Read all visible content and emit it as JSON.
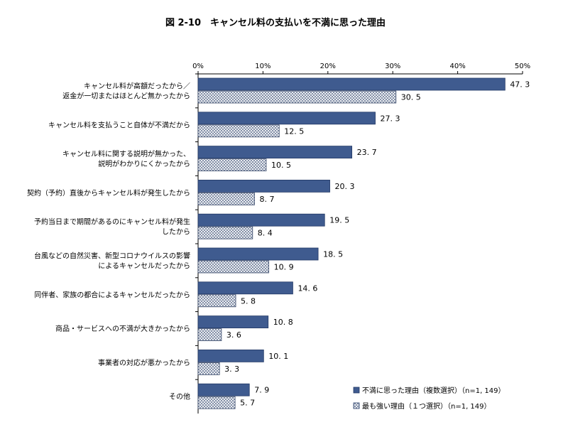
{
  "chart_data": {
    "type": "bar",
    "orientation": "horizontal",
    "title": "図 2-10　キャンセル料の支払いを不満に思った理由",
    "xlim": [
      0,
      50
    ],
    "x_ticks": [
      "0%",
      "10%",
      "20%",
      "30%",
      "40%",
      "50%"
    ],
    "grid": false,
    "legend_position": "bottom-right",
    "categories": [
      [
        "キャンセル料が高額だったから／",
        "返金が一切またはほとんど無かったから"
      ],
      [
        "キャンセル料を支払うこと自体が不満だから"
      ],
      [
        "キャンセル料に関する説明が無かった、",
        "説明がわかりにくかったから"
      ],
      [
        "契約（予約）直後からキャンセル料が発生したから"
      ],
      [
        "予約当日まで期間があるのにキャンセル料が発生",
        "したから"
      ],
      [
        "台風などの自然災害、新型コロナウイルスの影響",
        "によるキャンセルだったから"
      ],
      [
        "同伴者、家族の都合によるキャンセルだったから"
      ],
      [
        "商品・サービスへの不満が大きかったから"
      ],
      [
        "事業者の対応が悪かったから"
      ],
      [
        "その他"
      ]
    ],
    "series": [
      {
        "name": "不満に思った理由（複数選択）（n=1, 149）",
        "color": "#3f5b8f",
        "values": [
          47.3,
          27.3,
          23.7,
          20.3,
          19.5,
          18.5,
          14.6,
          10.8,
          10.1,
          7.9
        ],
        "labels": [
          "47. 3",
          "27. 3",
          "23. 7",
          "20. 3",
          "19. 5",
          "18. 5",
          "14. 6",
          "10. 8",
          "10. 1",
          "7. 9"
        ]
      },
      {
        "name": "最も強い理由（１つ選択）（n=1, 149）",
        "color": "#9aa8c2",
        "pattern": "crosshatch",
        "values": [
          30.5,
          12.5,
          10.5,
          8.7,
          8.4,
          10.9,
          5.8,
          3.6,
          3.3,
          5.7
        ],
        "labels": [
          "30. 5",
          "12. 5",
          "10. 5",
          "8. 7",
          "8. 4",
          "10. 9",
          "5. 8",
          "3. 6",
          "3. 3",
          "5. 7"
        ]
      }
    ]
  }
}
